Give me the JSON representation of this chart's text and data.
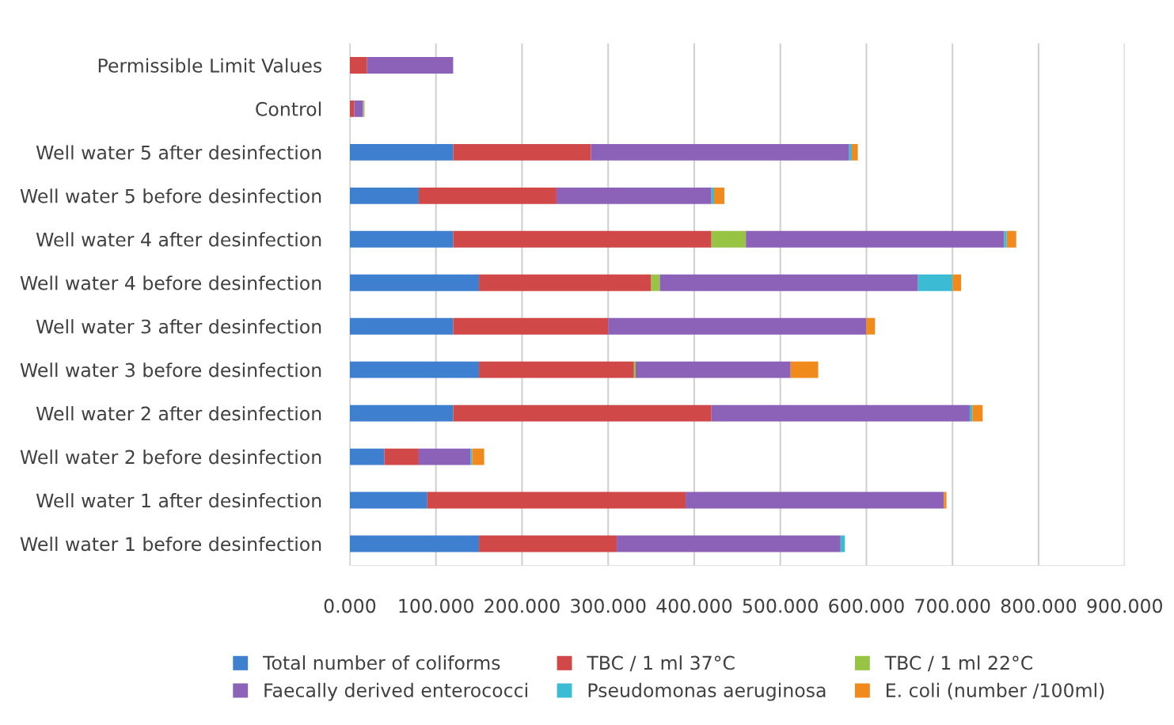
{
  "chart_data": {
    "type": "bar",
    "orientation": "horizontal",
    "stacked": true,
    "categories": [
      "Permissible Limit Values",
      "Control",
      "Well water 5 after desinfection",
      "Well water 5 before desinfection",
      "Well water 4 after desinfection",
      "Well water 4 before desinfection",
      "Well water 3 after desinfection",
      "Well water 3 before desinfection",
      "Well water 2 after desinfection",
      "Well water 2 before desinfection",
      "Well water 1 after desinfection",
      "Well water 1 before desinfection"
    ],
    "series": [
      {
        "name": "Total number of coliforms",
        "color": "#3f7fcf",
        "values": [
          0,
          0,
          120,
          80,
          120,
          150,
          120,
          150,
          120,
          40,
          90,
          150
        ]
      },
      {
        "name": "TBC / 1 ml 37°C",
        "color": "#d04848",
        "values": [
          20,
          5,
          160,
          160,
          300,
          200,
          180,
          180,
          300,
          40,
          300,
          160
        ]
      },
      {
        "name": "TBC / 1 ml 22°C",
        "color": "#98c444",
        "values": [
          0,
          0,
          0,
          0,
          40,
          10,
          0,
          2,
          0,
          0,
          0,
          0
        ]
      },
      {
        "name": "Faecally derived enterococci",
        "color": "#8c62b8",
        "values": [
          100,
          10,
          300,
          180,
          300,
          300,
          300,
          180,
          300,
          60,
          300,
          260
        ]
      },
      {
        "name": "Pseudomonas aeruginosa",
        "color": "#3cbcd4",
        "values": [
          0,
          1,
          3,
          3,
          3,
          40,
          0,
          0,
          3,
          2,
          0,
          5
        ]
      },
      {
        "name": "E. coli (number /100ml)",
        "color": "#f08a1c",
        "values": [
          0,
          1,
          7,
          12,
          11,
          10,
          10,
          32,
          12,
          14,
          3,
          0
        ]
      }
    ],
    "xlim": [
      0,
      900
    ],
    "xticks": [
      {
        "value": 0,
        "label": "0.000"
      },
      {
        "value": 100,
        "label": "100.000"
      },
      {
        "value": 200,
        "label": "200.000"
      },
      {
        "value": 300,
        "label": "300.000"
      },
      {
        "value": 400,
        "label": "400.000"
      },
      {
        "value": 500,
        "label": "500.000"
      },
      {
        "value": 600,
        "label": "600.000"
      },
      {
        "value": 700,
        "label": "700.000"
      },
      {
        "value": 800,
        "label": "800.000"
      },
      {
        "value": 900,
        "label": "900.000"
      }
    ],
    "grid": "x",
    "legend": "bottom"
  }
}
